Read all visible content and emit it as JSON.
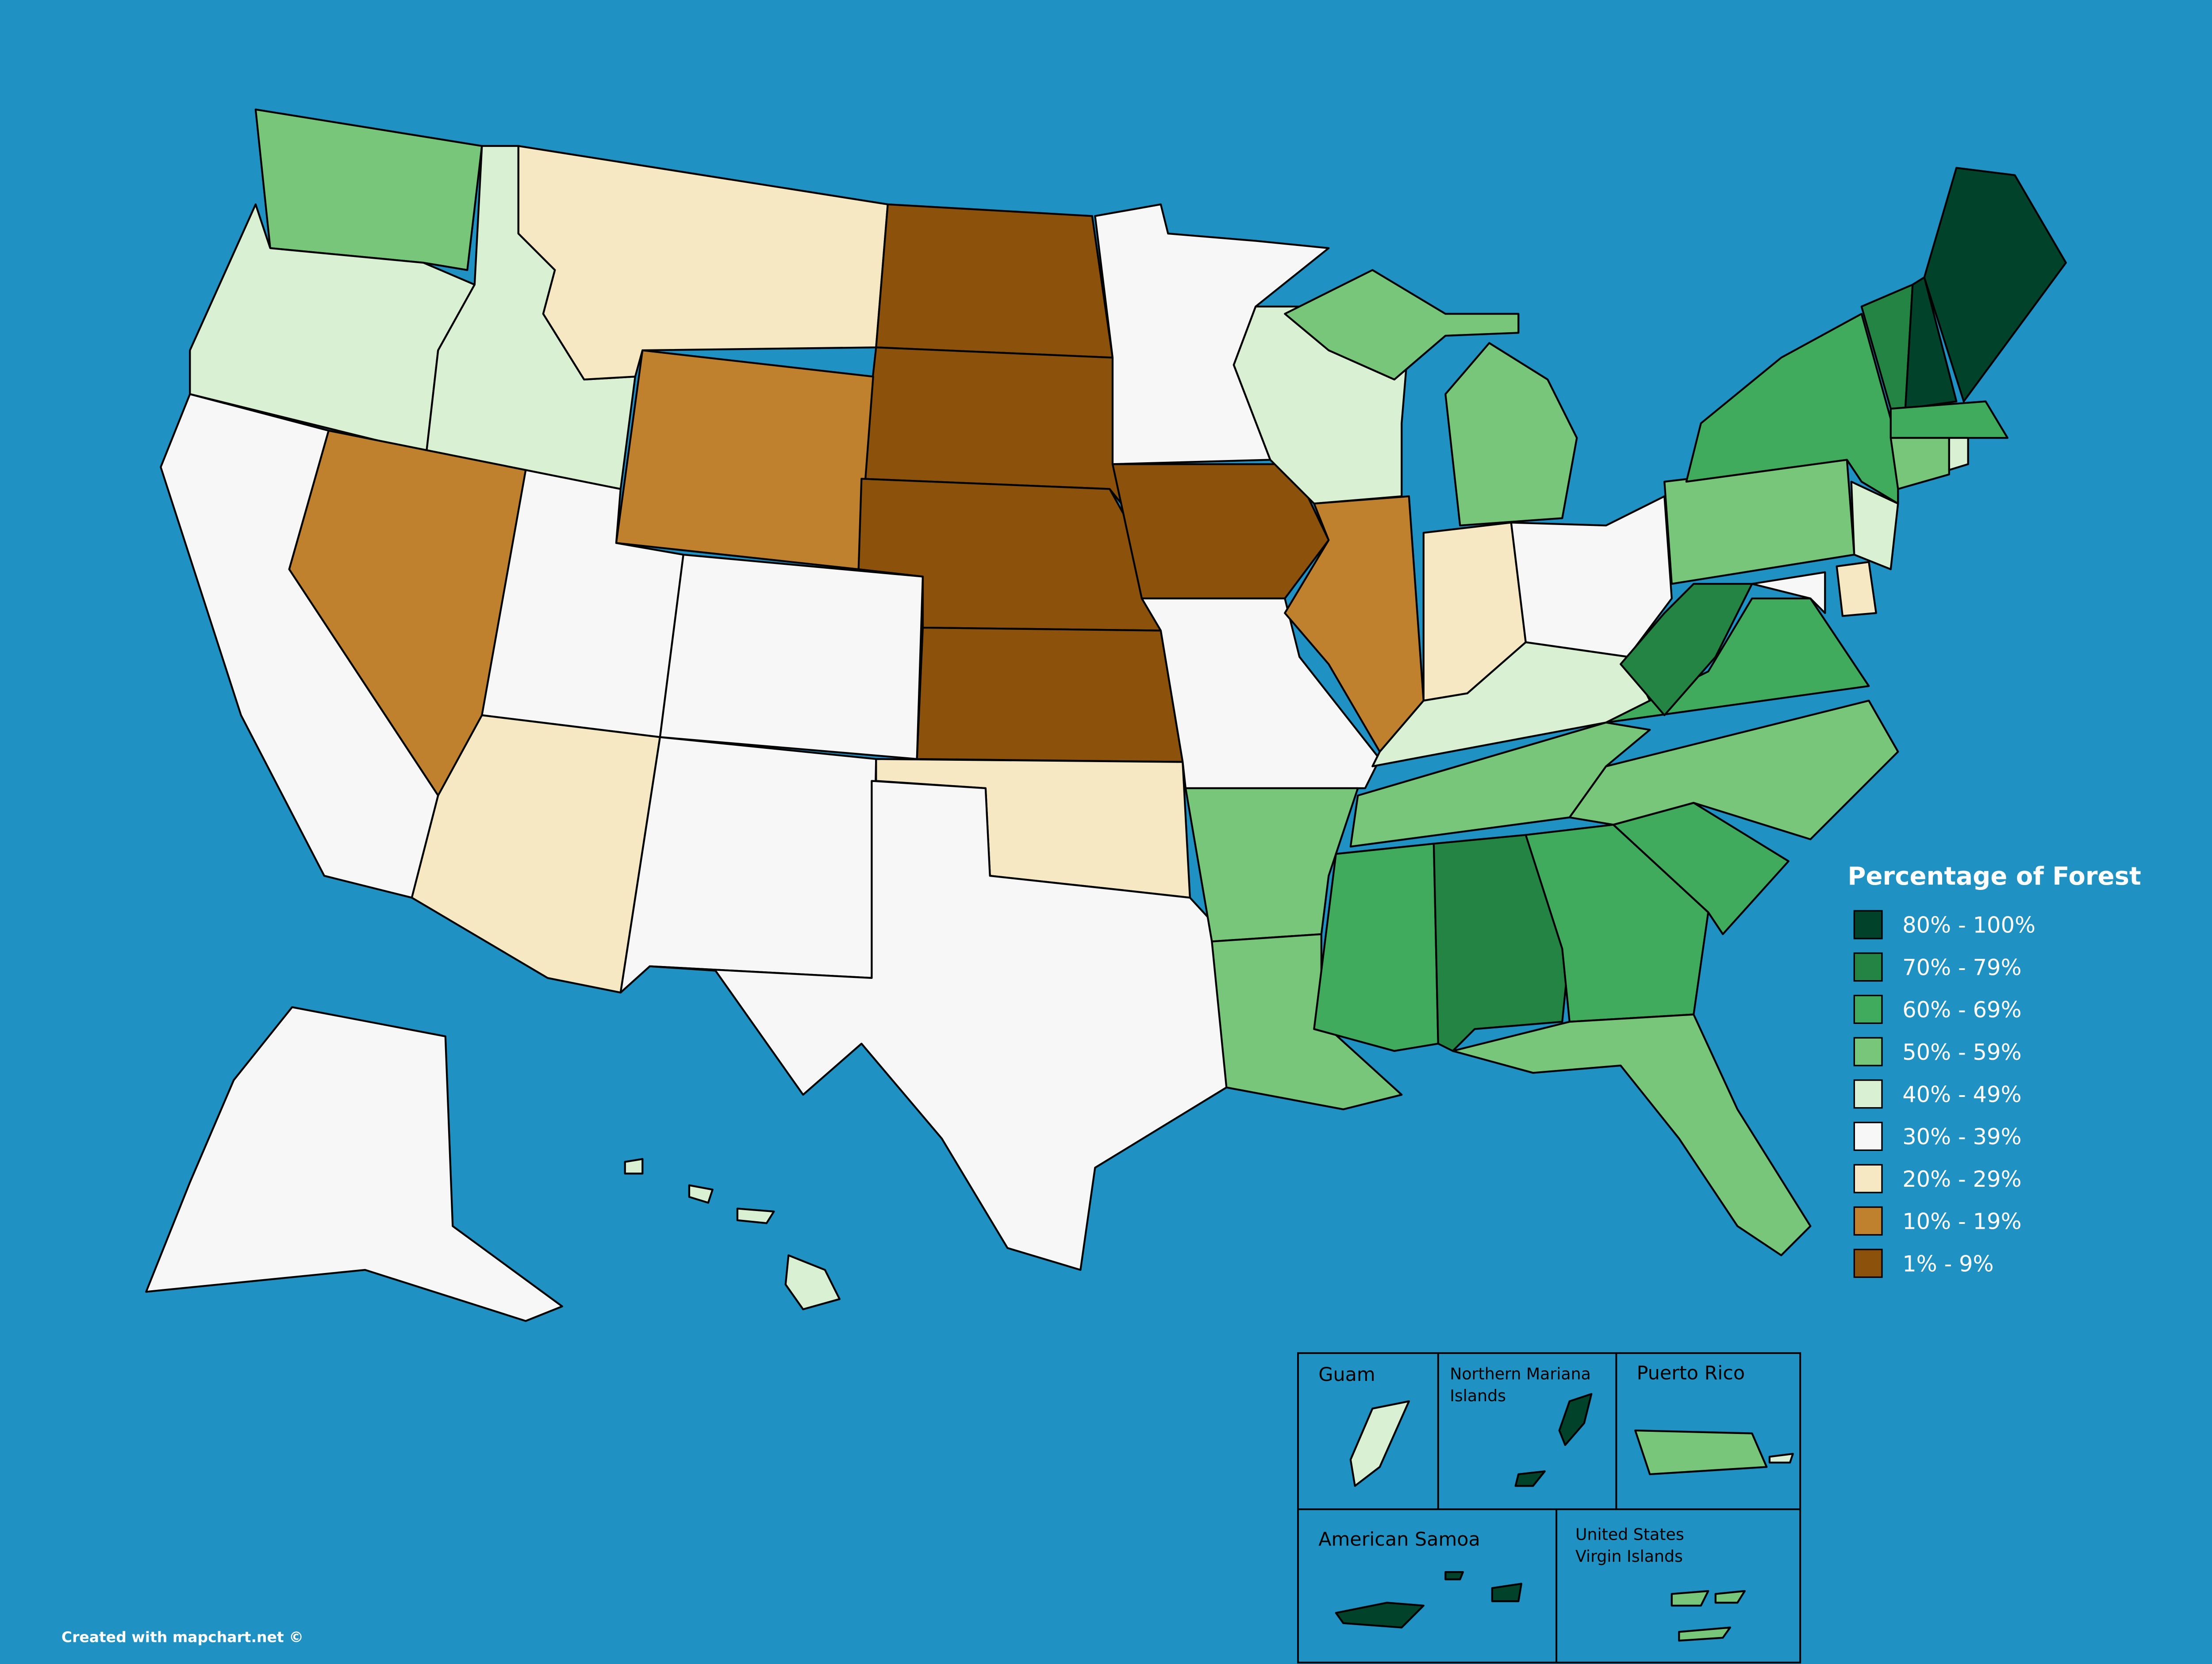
{
  "legend": {
    "title": "Percentage of Forest",
    "items": [
      {
        "label": "80% - 100%",
        "color": "#00432a"
      },
      {
        "label": "70% - 79%",
        "color": "#238443"
      },
      {
        "label": "60% - 69%",
        "color": "#41ab5d"
      },
      {
        "label": "50% - 59%",
        "color": "#78c679"
      },
      {
        "label": "40% - 49%",
        "color": "#d9f0d3"
      },
      {
        "label": "30% - 39%",
        "color": "#f7f7f7"
      },
      {
        "label": "20% - 29%",
        "color": "#f6e8c3"
      },
      {
        "label": "10% - 19%",
        "color": "#bf812d"
      },
      {
        "label": "1% - 9%",
        "color": "#8c510a"
      }
    ]
  },
  "insets": [
    {
      "lines": [
        "Guam"
      ]
    },
    {
      "lines": [
        "Northern Mariana",
        "Islands"
      ]
    },
    {
      "lines": [
        "Puerto Rico"
      ]
    },
    {
      "lines": [
        "American Samoa"
      ]
    },
    {
      "lines": [
        "United States",
        "Virgin Islands"
      ]
    }
  ],
  "credit": "Created with mapchart.net ©"
}
